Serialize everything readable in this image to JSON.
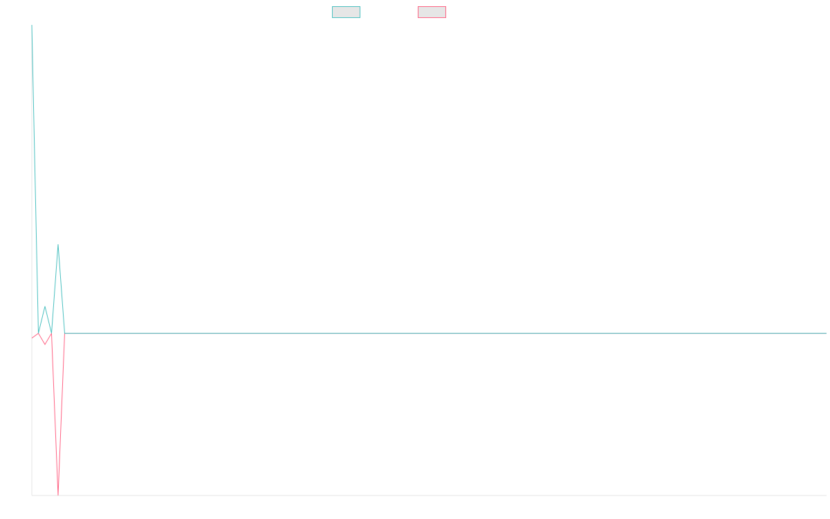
{
  "chart_data": {
    "type": "line",
    "title": "",
    "xlabel": "",
    "ylabel": "",
    "legend_position": "top-center",
    "grid": false,
    "x": [
      0,
      1,
      2,
      3,
      4,
      5,
      6,
      7,
      8,
      9,
      10,
      11,
      12,
      13,
      14,
      15,
      16,
      17,
      18,
      19,
      20,
      21,
      22,
      23,
      24,
      25,
      26,
      27,
      28,
      29,
      30,
      31,
      32,
      33,
      34,
      35,
      36,
      37,
      38,
      39,
      40,
      41,
      42,
      43,
      44,
      45,
      46,
      47,
      48,
      49,
      50,
      51,
      52,
      53,
      54,
      55,
      56,
      57,
      58,
      59,
      60,
      61,
      62,
      63,
      64,
      65,
      66,
      67,
      68,
      69,
      70,
      71,
      72,
      73,
      74,
      75,
      76,
      77,
      78,
      79,
      80,
      81,
      82,
      83,
      84,
      85,
      86,
      87,
      88,
      89,
      90,
      91,
      92,
      93,
      94,
      95,
      96,
      97,
      98,
      99,
      100,
      101,
      102,
      103,
      104,
      105,
      106,
      107,
      108,
      109,
      110,
      111,
      112,
      113,
      114,
      115,
      116,
      117,
      118,
      119,
      120,
      121
    ],
    "ylim": [
      -102,
      194
    ],
    "xlim": [
      0,
      121
    ],
    "series": [
      {
        "name": "",
        "color": "#4bc0c0",
        "values": [
          194,
          0,
          17,
          0,
          56,
          0,
          0,
          0,
          0,
          0,
          0,
          0,
          0,
          0,
          0,
          0,
          0,
          0,
          0,
          0,
          0,
          0,
          0,
          0,
          0,
          0,
          0,
          0,
          0,
          0,
          0,
          0,
          0,
          0,
          0,
          0,
          0,
          0,
          0,
          0,
          0,
          0,
          0,
          0,
          0,
          0,
          0,
          0,
          0,
          0,
          0,
          0,
          0,
          0,
          0,
          0,
          0,
          0,
          0,
          0,
          0,
          0,
          0,
          0,
          0,
          0,
          0,
          0,
          0,
          0,
          0,
          0,
          0,
          0,
          0,
          0,
          0,
          0,
          0,
          0,
          0,
          0,
          0,
          0,
          0,
          0,
          0,
          0,
          0,
          0,
          0,
          0,
          0,
          0,
          0,
          0,
          0,
          0,
          0,
          0,
          0,
          0,
          0,
          0,
          0,
          0,
          0,
          0,
          0,
          0,
          0,
          0,
          0,
          0,
          0,
          0,
          0,
          0,
          0,
          0,
          0,
          0
        ]
      },
      {
        "name": "",
        "color": "#ff6384",
        "values": [
          -3,
          0,
          -7,
          0,
          -102,
          0,
          0,
          0,
          0,
          0,
          0,
          0,
          0,
          0,
          0,
          0,
          0,
          0,
          0,
          0,
          0,
          0,
          0,
          0,
          0,
          0,
          0,
          0,
          0,
          0,
          0,
          0,
          0,
          0,
          0,
          0,
          0,
          0,
          0,
          0,
          0,
          0,
          0,
          0,
          0,
          0,
          0,
          0,
          0,
          0,
          0,
          0,
          0,
          0,
          0,
          0,
          0,
          0,
          0,
          0,
          0,
          0,
          0,
          0,
          0,
          0,
          0,
          0,
          0,
          0,
          0,
          0,
          0,
          0,
          0,
          0,
          0,
          0,
          0,
          0,
          0,
          0,
          0,
          0,
          0,
          0,
          0,
          0,
          0,
          0,
          0,
          0,
          0,
          0,
          0,
          0,
          0,
          0,
          0,
          0,
          0,
          0,
          0,
          0,
          0,
          0,
          0,
          0,
          0,
          0,
          0,
          0,
          0,
          0,
          0,
          0,
          0,
          0,
          0,
          0,
          0,
          0
        ]
      }
    ]
  }
}
